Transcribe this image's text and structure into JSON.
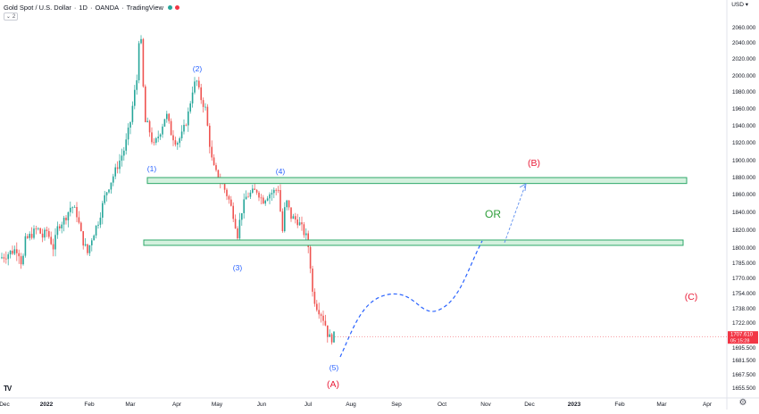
{
  "header": {
    "symbol": "Gold Spot / U.S. Dollar",
    "interval": "1D",
    "broker": "OANDA",
    "platform": "TradingView",
    "collapse_count": "2",
    "currency": "USD",
    "status_colors": [
      "#26a69a",
      "#f23645"
    ]
  },
  "chart_data": {
    "type": "candlestick",
    "price_axis": {
      "ticks": [
        2060.0,
        2040.0,
        2020.0,
        2000.0,
        1980.0,
        1960.0,
        1940.0,
        1920.0,
        1900.0,
        1880.0,
        1860.0,
        1840.0,
        1820.0,
        1800.0,
        1785.0,
        1770.0,
        1754.0,
        1738.0,
        1722.0,
        1695.5,
        1681.5,
        1667.5,
        1655.5
      ],
      "tick_labels": [
        "2060.000",
        "2040.000",
        "2020.000",
        "2000.000",
        "1980.000",
        "1960.000",
        "1940.000",
        "1920.000",
        "1900.000",
        "1880.000",
        "1860.000",
        "1840.000",
        "1820.000",
        "1800.000",
        "1785.000",
        "1770.000",
        "1754.000",
        "1738.000",
        "1722.000",
        "1695.500",
        "1681.500",
        "1667.500",
        "1655.500"
      ],
      "last_price": "1707.610",
      "countdown": "05:15:28",
      "last_price_color": "#f23645"
    },
    "time_axis": {
      "labels": [
        "Dec",
        "2022",
        "Feb",
        "Mar",
        "Apr",
        "May",
        "Jun",
        "Jul",
        "Aug",
        "Sep",
        "Oct",
        "Nov",
        "Dec",
        "2023",
        "Feb",
        "Mar",
        "Apr"
      ],
      "bold": [
        "2022",
        "2023"
      ]
    },
    "candle_colors": {
      "up": "#26a69a",
      "down": "#ef5350"
    },
    "wave_labels": {
      "impulse": [
        "(1)",
        "(2)",
        "(3)",
        "(4)",
        "(5)"
      ],
      "corrective": [
        "(A)",
        "(B)",
        "(C)"
      ],
      "impulse_color": "#2962ff",
      "corrective_color": "#e91e3a"
    },
    "zones": [
      {
        "name": "upper-resistance-zone",
        "low": 1873,
        "high": 1880
      },
      {
        "name": "lower-support-zone",
        "low": 1803,
        "high": 1809
      }
    ],
    "annotation": {
      "text": "OR",
      "color": "#2e9e3a"
    },
    "projection_color": "#2962ff",
    "zone_fill": "#d4f1de",
    "zone_stroke": "#2ea86a"
  }
}
